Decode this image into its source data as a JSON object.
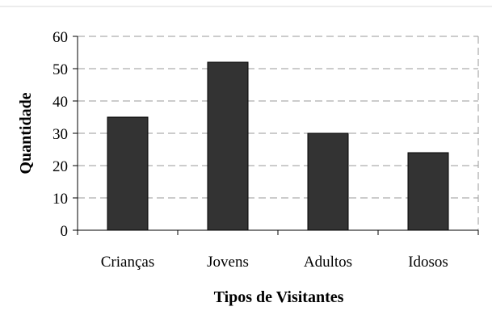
{
  "chart_data": {
    "type": "bar",
    "categories": [
      "Crianças",
      "Jovens",
      "Adultos",
      "Idosos"
    ],
    "values": [
      35,
      52,
      30,
      24
    ],
    "title": "",
    "xlabel": "Tipos de Visitantes",
    "ylabel": "Quantidade",
    "ylim": [
      0,
      60
    ],
    "yticks": [
      0,
      10,
      20,
      30,
      40,
      50,
      60
    ],
    "grid": true,
    "legend": "none",
    "bar_color": "#333333",
    "grid_color": "#999999"
  }
}
